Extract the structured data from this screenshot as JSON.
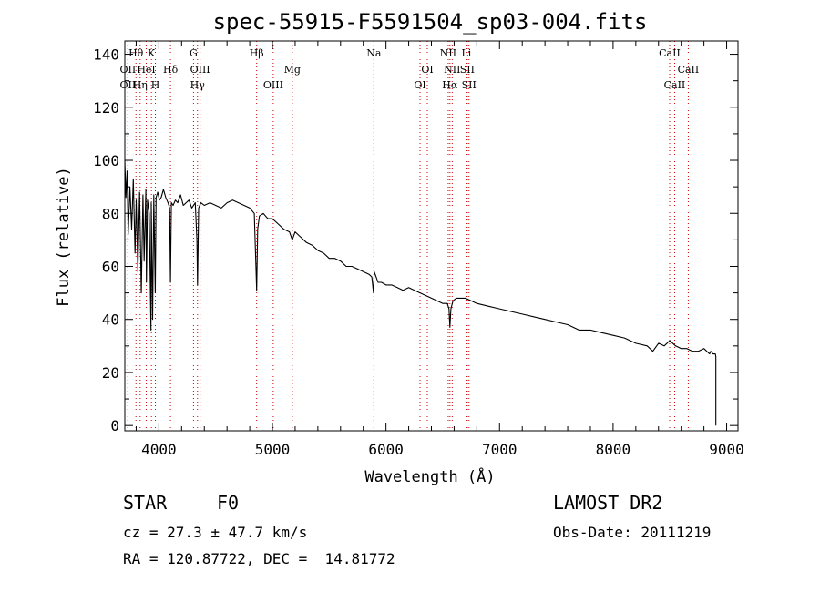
{
  "chart_data": {
    "type": "line",
    "title": "spec-55915-F5591504_sp03-004.fits",
    "xlabel": "Wavelength (Å)",
    "ylabel": "Flux (relative)",
    "xlim": [
      3700,
      9100
    ],
    "ylim": [
      -2,
      145
    ],
    "x_ticks": [
      4000,
      5000,
      6000,
      7000,
      8000,
      9000
    ],
    "y_ticks": [
      0,
      20,
      40,
      60,
      80,
      100,
      120,
      140
    ],
    "line_color": "#000000",
    "marker_color": "#cc0000",
    "spectrum": {
      "x": [
        3700,
        3710,
        3720,
        3730,
        3745,
        3760,
        3775,
        3790,
        3800,
        3815,
        3830,
        3845,
        3860,
        3870,
        3885,
        3890,
        3900,
        3915,
        3930,
        3933,
        3945,
        3955,
        3968,
        3975,
        3990,
        4005,
        4020,
        4040,
        4060,
        4080,
        4095,
        4102,
        4110,
        4125,
        4145,
        4165,
        4190,
        4215,
        4240,
        4265,
        4290,
        4320,
        4335,
        4340,
        4350,
        4370,
        4400,
        4450,
        4500,
        4550,
        4600,
        4650,
        4700,
        4750,
        4800,
        4840,
        4855,
        4861,
        4870,
        4885,
        4920,
        4960,
        5000,
        5050,
        5100,
        5150,
        5175,
        5200,
        5250,
        5300,
        5350,
        5400,
        5450,
        5500,
        5550,
        5600,
        5650,
        5700,
        5750,
        5800,
        5850,
        5875,
        5890,
        5896,
        5905,
        5930,
        5960,
        6000,
        6050,
        6100,
        6150,
        6200,
        6250,
        6300,
        6350,
        6400,
        6450,
        6500,
        6540,
        6555,
        6563,
        6572,
        6590,
        6620,
        6700,
        6800,
        6900,
        7000,
        7100,
        7200,
        7300,
        7400,
        7500,
        7600,
        7700,
        7800,
        7900,
        8000,
        8100,
        8200,
        8300,
        8350,
        8400,
        8450,
        8500,
        8550,
        8600,
        8650,
        8700,
        8750,
        8800,
        8850,
        8860,
        8880,
        8900,
        8905
      ],
      "y": [
        100,
        86,
        96,
        72,
        90,
        74,
        93,
        65,
        85,
        58,
        88,
        50,
        87,
        62,
        89,
        54,
        85,
        80,
        36,
        84,
        40,
        87,
        50,
        86,
        88,
        85,
        86,
        89,
        86,
        84,
        82,
        54,
        84,
        83,
        85,
        84,
        87,
        83,
        84,
        85,
        82,
        84,
        70,
        53,
        82,
        84,
        83,
        84,
        83,
        82,
        84,
        85,
        84,
        83,
        82,
        80,
        60,
        51,
        74,
        79,
        80,
        78,
        78,
        76,
        74,
        73,
        70,
        73,
        71,
        69,
        68,
        66,
        65,
        63,
        63,
        62,
        60,
        60,
        59,
        58,
        57,
        56,
        50,
        58,
        57,
        54,
        54,
        53,
        53,
        52,
        51,
        52,
        51,
        50,
        49,
        48,
        47,
        46,
        46,
        44,
        37,
        44,
        47,
        48,
        48,
        46,
        45,
        44,
        43,
        42,
        41,
        40,
        39,
        38,
        36,
        36,
        35,
        34,
        33,
        31,
        30,
        28,
        31,
        30,
        32,
        30,
        29,
        29,
        28,
        28,
        29,
        27,
        28,
        27,
        27,
        26
      ]
    },
    "line_markers": [
      {
        "label": "Hθ",
        "x": 3798,
        "row": 1
      },
      {
        "label": "OII",
        "x": 3727,
        "row": 2
      },
      {
        "label": "OII",
        "x": 3727,
        "row": 3
      },
      {
        "label": "HeI",
        "x": 3889,
        "row": 2
      },
      {
        "label": "Hη",
        "x": 3835,
        "row": 3
      },
      {
        "label": "K",
        "x": 3934,
        "row": 1
      },
      {
        "label": "H",
        "x": 3969,
        "row": 3
      },
      {
        "label": "Hδ",
        "x": 4102,
        "row": 2
      },
      {
        "label": "G",
        "x": 4305,
        "row": 1
      },
      {
        "label": "OIII",
        "x": 4363,
        "row": 2
      },
      {
        "label": "Hγ",
        "x": 4340,
        "row": 3
      },
      {
        "label": "Hβ",
        "x": 4861,
        "row": 1
      },
      {
        "label": "OIII",
        "x": 5007,
        "row": 3
      },
      {
        "label": "Mg",
        "x": 5175,
        "row": 2
      },
      {
        "label": "Na",
        "x": 5893,
        "row": 1
      },
      {
        "label": "OI",
        "x": 6364,
        "row": 2
      },
      {
        "label": "OI",
        "x": 6300,
        "row": 3
      },
      {
        "label": "NII",
        "x": 6548,
        "row": 1
      },
      {
        "label": "NII",
        "x": 6583,
        "row": 2
      },
      {
        "label": "Hα",
        "x": 6563,
        "row": 3
      },
      {
        "label": "Li",
        "x": 6708,
        "row": 1
      },
      {
        "label": "SII",
        "x": 6716,
        "row": 2
      },
      {
        "label": "SII",
        "x": 6731,
        "row": 3
      },
      {
        "label": "CaII",
        "x": 8498,
        "row": 1
      },
      {
        "label": "CaII",
        "x": 8662,
        "row": 2
      },
      {
        "label": "CaII",
        "x": 8542,
        "row": 3
      }
    ]
  },
  "info": {
    "object_class": "STAR",
    "subclass": "F0",
    "survey": "LAMOST DR2",
    "redshift": "cz = 27.3 ± 47.7 km/s",
    "obs_date": "Obs-Date: 20111219",
    "coords": "RA = 120.87722, DEC =  14.81772"
  }
}
